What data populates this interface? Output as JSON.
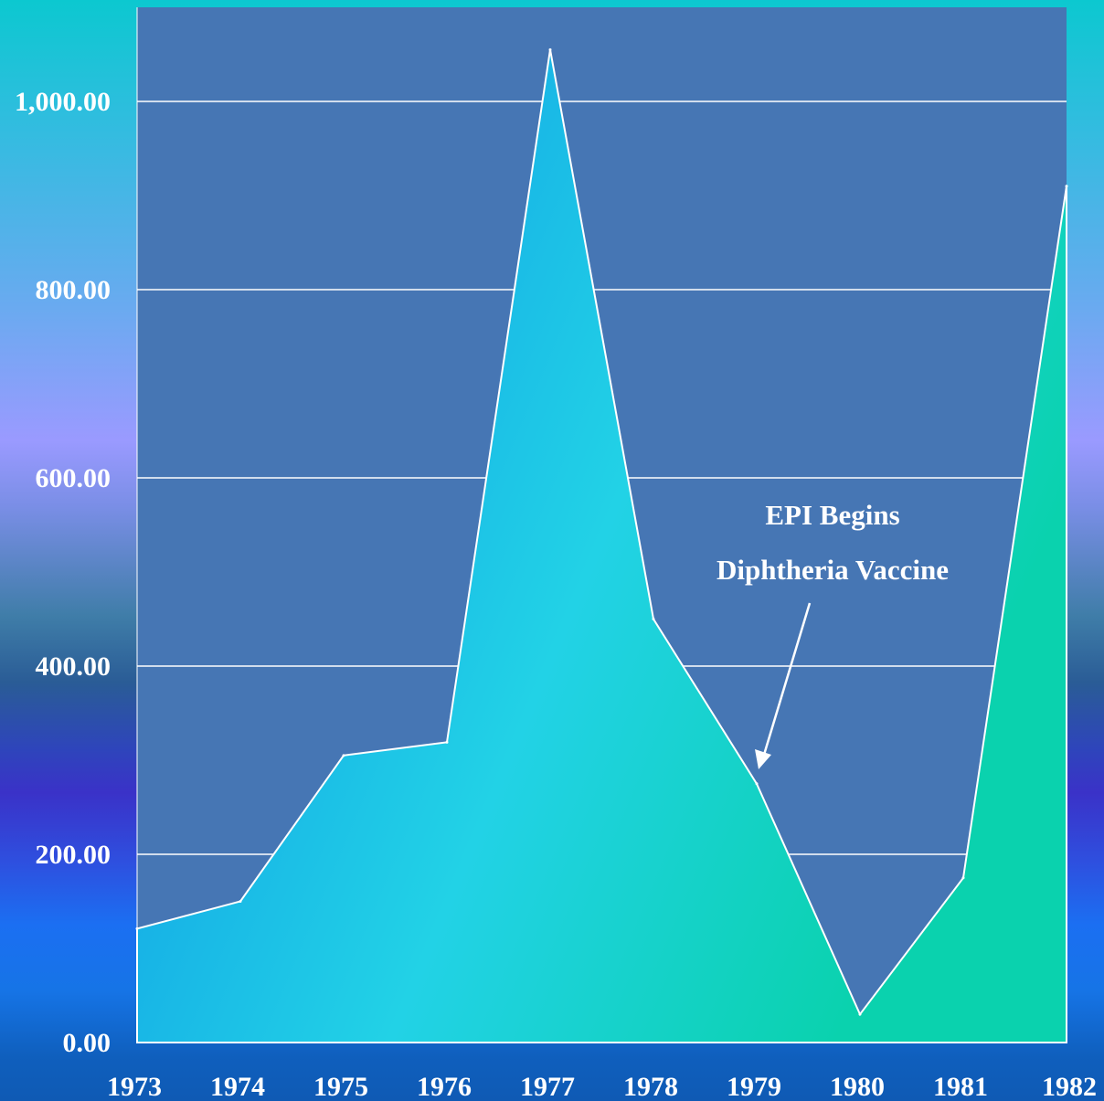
{
  "chart_data": {
    "type": "area",
    "x": [
      "1973",
      "1974",
      "1975",
      "1976",
      "1977",
      "1978",
      "1979",
      "1980",
      "1981",
      "1982"
    ],
    "values": [
      121,
      150,
      305,
      319,
      1055,
      450,
      275,
      30,
      175,
      910
    ],
    "ylim": [
      0,
      1000
    ],
    "y_ticks": [
      "0.00",
      "200.00",
      "400.00",
      "600.00",
      "800.00",
      "1,000.00"
    ],
    "grid": true,
    "annotations": [
      {
        "line1": "EPI Begins",
        "line2": "Diphtheria Vaccine",
        "points_to": "1979"
      }
    ],
    "colors": {
      "plot_background": "#4676b4",
      "area_start": "#0a8ce6",
      "area_mid": "#22d2e6",
      "area_end": "#0ad2ae",
      "gridline": "#ffffff",
      "outline": "#ffffff"
    }
  }
}
